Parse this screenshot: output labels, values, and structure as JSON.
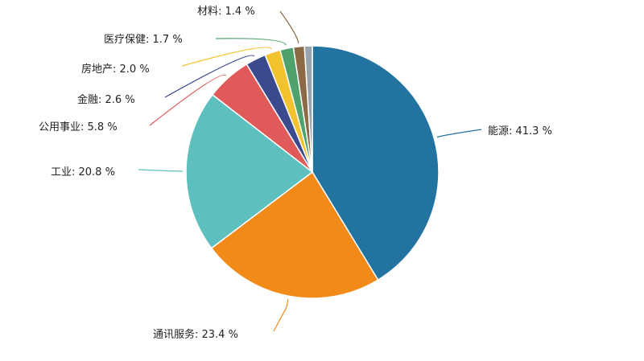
{
  "chart_data": {
    "type": "pie",
    "title": "",
    "unit": "%",
    "slices": [
      {
        "label": "能源",
        "value": 41.3,
        "color": "#2273a0"
      },
      {
        "label": "通讯服务",
        "value": 23.4,
        "color": "#f28a1a"
      },
      {
        "label": "工业",
        "value": 20.8,
        "color": "#5ebfbf"
      },
      {
        "label": "公用事业",
        "value": 5.8,
        "color": "#e05a5a"
      },
      {
        "label": "金融",
        "value": 2.6,
        "color": "#3b4a8f"
      },
      {
        "label": "房地产",
        "value": 2.0,
        "color": "#f2c32e"
      },
      {
        "label": "医疗保健",
        "value": 1.7,
        "color": "#4fa26b"
      },
      {
        "label": "材料",
        "value": 1.4,
        "color": "#8b6a45"
      },
      {
        "label": "",
        "value": 1.0,
        "color": "#9aa4ad"
      }
    ],
    "data_labels": [
      "能源: 41.3 %",
      "通讯服务: 23.4 %",
      "工业: 20.8 %",
      "公用事业: 5.8 %",
      "金融: 2.6 %",
      "房地产: 2.0 %",
      "医疗保健: 1.7 %",
      "材料: 1.4 %"
    ]
  }
}
